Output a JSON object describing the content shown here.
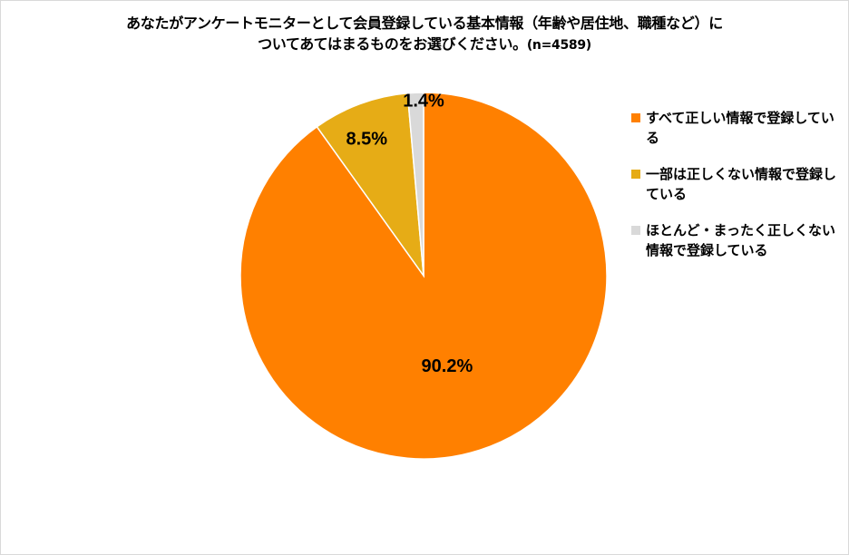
{
  "chart_data": {
    "type": "pie",
    "title_line1": "あなたがアンケートモニターとして会員登録している基本情報（年齢や居住地、職種など）に",
    "title_line2": "ついてあてはまるものをお選びください。",
    "sample_size": "(n=4589)",
    "slices": [
      {
        "label": "すべて正しい情報で登録している",
        "value": 90.2,
        "display": "90.2%",
        "color": "#FF8000"
      },
      {
        "label": "一部は正しくない情報で登録している",
        "value": 8.5,
        "display": "8.5%",
        "color": "#E6AC16"
      },
      {
        "label": "ほとんど・まったく正しくない情報で登録している",
        "value": 1.4,
        "display": "1.4%",
        "color": "#D9D9D9"
      }
    ],
    "start_angle": "12 o'clock",
    "direction": "clockwise",
    "legend_position": "right"
  }
}
